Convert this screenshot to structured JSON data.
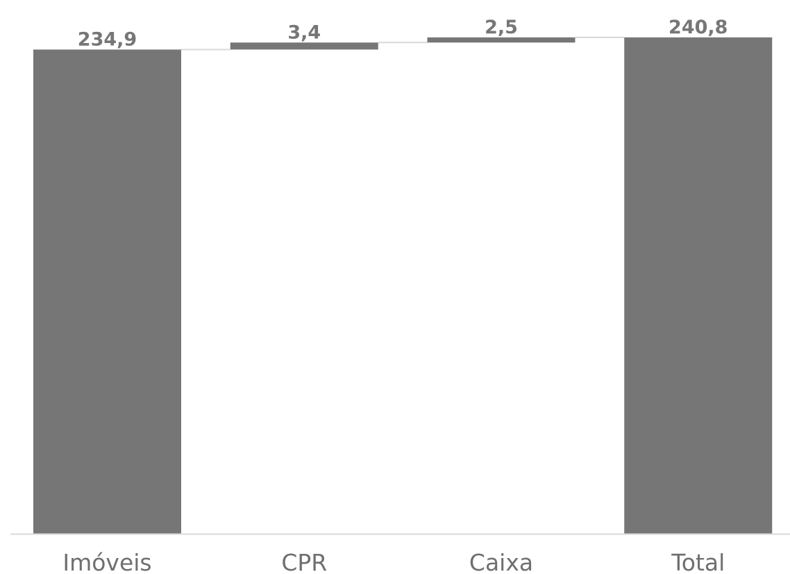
{
  "chart_data": {
    "type": "bar",
    "subtype": "waterfall",
    "categories": [
      "Imóveis",
      "CPR",
      "Caixa",
      "Total"
    ],
    "values": [
      234.9,
      3.4,
      2.5,
      240.8
    ],
    "value_labels": [
      "234,9",
      "3,4",
      "2,5",
      "240,8"
    ],
    "bar_kinds": [
      "total",
      "increment",
      "increment",
      "total"
    ],
    "title": "",
    "xlabel": "",
    "ylabel": "",
    "ylim": [
      0,
      248.5
    ],
    "grid": false,
    "legend": "none",
    "colors": {
      "bar": "#767676",
      "label": "#767676",
      "axis_text": "#6f6f6f",
      "axis_line": "#d9d9d9",
      "connector": "#d9d9d9"
    }
  }
}
